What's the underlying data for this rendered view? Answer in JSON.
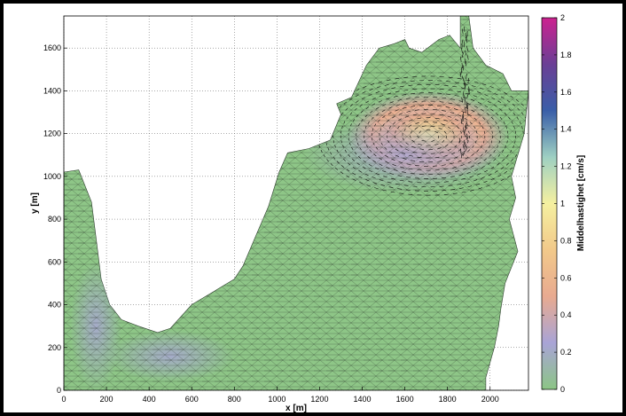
{
  "chart_data": {
    "type": "heatmap",
    "xlabel": "x [m]",
    "ylabel": "y [m]",
    "xlim": [
      0,
      2180
    ],
    "ylim": [
      0,
      1750
    ],
    "xticks": [
      0,
      200,
      400,
      600,
      800,
      1000,
      1200,
      1400,
      1600,
      1800,
      2000
    ],
    "yticks": [
      0,
      200,
      400,
      600,
      800,
      1000,
      1200,
      1400,
      1600
    ],
    "grid": true,
    "colorbar": {
      "label": "Middelhastighet [cm/s]",
      "min": 0,
      "max": 2,
      "ticks": [
        0,
        0.2,
        0.4,
        0.6,
        0.8,
        1,
        1.2,
        1.4,
        1.6,
        1.8,
        2
      ],
      "colors": [
        "#8cc585",
        "#a9a4d6",
        "#e8aa90",
        "#f2c98a",
        "#f5f0a0",
        "#9ed0c2",
        "#3a5ea8",
        "#6a3f95",
        "#cc2290"
      ]
    },
    "domain_outline": [
      [
        0,
        1020
      ],
      [
        70,
        1030
      ],
      [
        130,
        880
      ],
      [
        150,
        720
      ],
      [
        175,
        520
      ],
      [
        215,
        400
      ],
      [
        270,
        330
      ],
      [
        350,
        300
      ],
      [
        440,
        270
      ],
      [
        500,
        290
      ],
      [
        600,
        400
      ],
      [
        700,
        460
      ],
      [
        800,
        520
      ],
      [
        840,
        580
      ],
      [
        900,
        720
      ],
      [
        960,
        860
      ],
      [
        1010,
        1020
      ],
      [
        1050,
        1110
      ],
      [
        1150,
        1130
      ],
      [
        1250,
        1170
      ],
      [
        1300,
        1290
      ],
      [
        1280,
        1340
      ],
      [
        1350,
        1370
      ],
      [
        1420,
        1520
      ],
      [
        1480,
        1600
      ],
      [
        1550,
        1620
      ],
      [
        1600,
        1640
      ],
      [
        1620,
        1600
      ],
      [
        1680,
        1580
      ],
      [
        1760,
        1640
      ],
      [
        1810,
        1660
      ],
      [
        1860,
        1600
      ],
      [
        1860,
        1750
      ],
      [
        1900,
        1750
      ],
      [
        1920,
        1600
      ],
      [
        1980,
        1520
      ],
      [
        2060,
        1480
      ],
      [
        2100,
        1400
      ],
      [
        2180,
        1400
      ],
      [
        2160,
        1200
      ],
      [
        2100,
        1000
      ],
      [
        2120,
        900
      ],
      [
        2090,
        800
      ],
      [
        2130,
        650
      ],
      [
        2070,
        500
      ],
      [
        2050,
        380
      ],
      [
        2040,
        300
      ],
      [
        2020,
        200
      ],
      [
        1980,
        60
      ],
      [
        1980,
        0
      ],
      [
        0,
        0
      ]
    ],
    "vortex_center": [
      1710,
      1190
    ],
    "speed_field": [
      {
        "x": 1710,
        "y": 1190,
        "rx": 380,
        "ry": 210,
        "speed": 1.15
      },
      {
        "x": 1710,
        "y": 1190,
        "rx": 240,
        "ry": 140,
        "speed": 1.4
      },
      {
        "x": 1600,
        "y": 1100,
        "rx": 480,
        "ry": 180,
        "speed": 0.45
      },
      {
        "x": 500,
        "y": 160,
        "rx": 300,
        "ry": 120,
        "speed": 0.3
      },
      {
        "x": 150,
        "y": 300,
        "rx": 120,
        "ry": 300,
        "speed": 0.3
      }
    ]
  }
}
